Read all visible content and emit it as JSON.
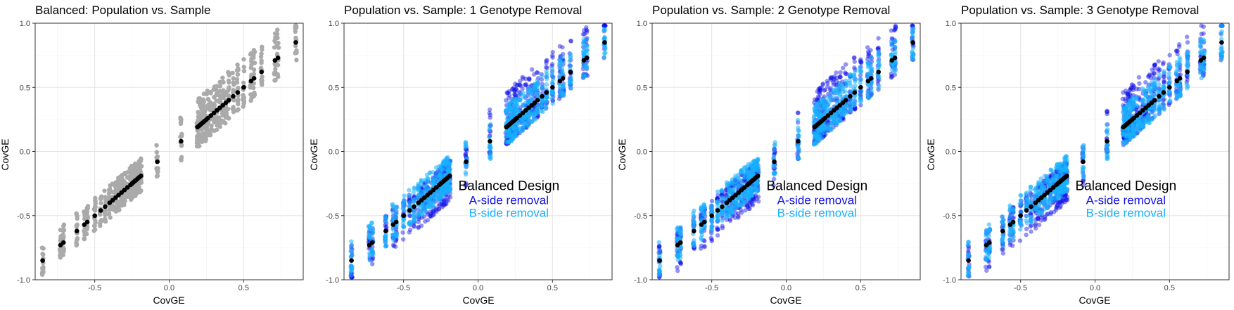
{
  "chart_data": [
    {
      "type": "scatter",
      "title": "Balanced: Population vs. Sample",
      "xlabel": "CovGE",
      "ylabel": "CovGE",
      "xlim": [
        -0.9,
        0.9
      ],
      "ylim": [
        -1.0,
        1.0
      ],
      "xticks": [
        -0.5,
        0.0,
        0.5
      ],
      "yticks": [
        -1.0,
        -0.5,
        0.0,
        0.5,
        1.0
      ],
      "grid": true,
      "series": [
        {
          "key": "sample",
          "color": "#aaaaaa",
          "alpha": 1.0
        },
        {
          "key": "population",
          "color": "#000000",
          "alpha": 1.0
        }
      ],
      "annotation": null
    },
    {
      "type": "scatter",
      "title": "Population vs. Sample: 1 Genotype Removal",
      "xlabel": "CovGE",
      "ylabel": "CovGE",
      "xlim": [
        -0.9,
        0.9
      ],
      "ylim": [
        -1.0,
        1.0
      ],
      "xticks": [
        -0.5,
        0.0,
        0.5
      ],
      "yticks": [
        -1.0,
        -0.5,
        0.0,
        0.5,
        1.0
      ],
      "grid": true,
      "series": [
        {
          "key": "a_side",
          "name": "A-side removal",
          "color": "#1010e6",
          "alpha": 0.45
        },
        {
          "key": "b_side",
          "name": "B-side removal",
          "color": "#18b0ff",
          "alpha": 0.55
        },
        {
          "key": "population",
          "color": "#000000",
          "alpha": 1.0
        }
      ],
      "annotation": {
        "title": "Balanced Design",
        "line1": "A-side removal",
        "line2": "B-side removal"
      }
    },
    {
      "type": "scatter",
      "title": "Population vs. Sample: 2 Genotype Removal",
      "xlabel": "CovGE",
      "ylabel": "CovGE",
      "xlim": [
        -0.9,
        0.9
      ],
      "ylim": [
        -1.0,
        1.0
      ],
      "xticks": [
        -0.5,
        0.0,
        0.5
      ],
      "yticks": [
        -1.0,
        -0.5,
        0.0,
        0.5,
        1.0
      ],
      "grid": true,
      "series": [
        {
          "key": "a_side",
          "name": "A-side removal",
          "color": "#1010e6",
          "alpha": 0.45
        },
        {
          "key": "b_side",
          "name": "B-side removal",
          "color": "#18b0ff",
          "alpha": 0.55
        },
        {
          "key": "population",
          "color": "#000000",
          "alpha": 1.0
        }
      ],
      "annotation": {
        "title": "Balanced Design",
        "line1": "A-side removal",
        "line2": "B-side removal"
      }
    },
    {
      "type": "scatter",
      "title": "Population vs. Sample: 3 Genotype Removal",
      "xlabel": "CovGE",
      "ylabel": "CovGE",
      "xlim": [
        -0.9,
        0.9
      ],
      "ylim": [
        -1.0,
        1.0
      ],
      "xticks": [
        -0.5,
        0.0,
        0.5
      ],
      "yticks": [
        -1.0,
        -0.5,
        0.0,
        0.5,
        1.0
      ],
      "grid": true,
      "series": [
        {
          "key": "a_side",
          "name": "A-side removal",
          "color": "#1010e6",
          "alpha": 0.45
        },
        {
          "key": "b_side",
          "name": "B-side removal",
          "color": "#18b0ff",
          "alpha": 0.55
        },
        {
          "key": "population",
          "color": "#000000",
          "alpha": 1.0
        }
      ],
      "annotation": {
        "title": "Balanced Design",
        "line1": "A-side removal",
        "line2": "B-side removal"
      }
    }
  ],
  "population_x": [
    -0.85,
    -0.73,
    -0.71,
    -0.62,
    -0.57,
    -0.55,
    -0.5,
    -0.46,
    -0.43,
    -0.4,
    -0.38,
    -0.36,
    -0.34,
    -0.32,
    -0.3,
    -0.28,
    -0.26,
    -0.25,
    -0.24,
    -0.23,
    -0.22,
    -0.21,
    -0.2,
    -0.19,
    -0.08,
    0.08,
    0.19,
    0.2,
    0.21,
    0.22,
    0.23,
    0.24,
    0.25,
    0.26,
    0.28,
    0.3,
    0.32,
    0.34,
    0.36,
    0.38,
    0.4,
    0.43,
    0.46,
    0.5,
    0.55,
    0.57,
    0.62,
    0.71,
    0.73,
    0.85
  ],
  "spread": {
    "sample": {
      "neg_low": 0.12,
      "neg_high": 0.14,
      "pos_low": 0.16,
      "pos_high": 0.22
    },
    "a_side": {
      "neg_low": 0.2,
      "neg_high": 0.12,
      "pos_low": 0.14,
      "pos_high": 0.28
    },
    "b_side": {
      "neg_low": 0.12,
      "neg_high": 0.16,
      "pos_low": 0.14,
      "pos_high": 0.17
    }
  }
}
